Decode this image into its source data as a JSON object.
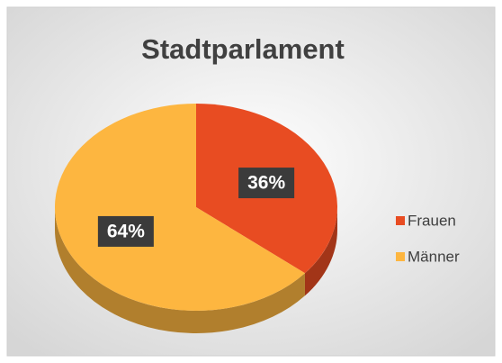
{
  "chart_data": {
    "type": "pie",
    "title": "Stadtparlament",
    "categories": [
      "Frauen",
      "Männer"
    ],
    "values": [
      36,
      64
    ],
    "value_labels": [
      "36%",
      "64%"
    ],
    "colors": [
      "#e84c22",
      "#fdb640"
    ],
    "legend": "right"
  }
}
